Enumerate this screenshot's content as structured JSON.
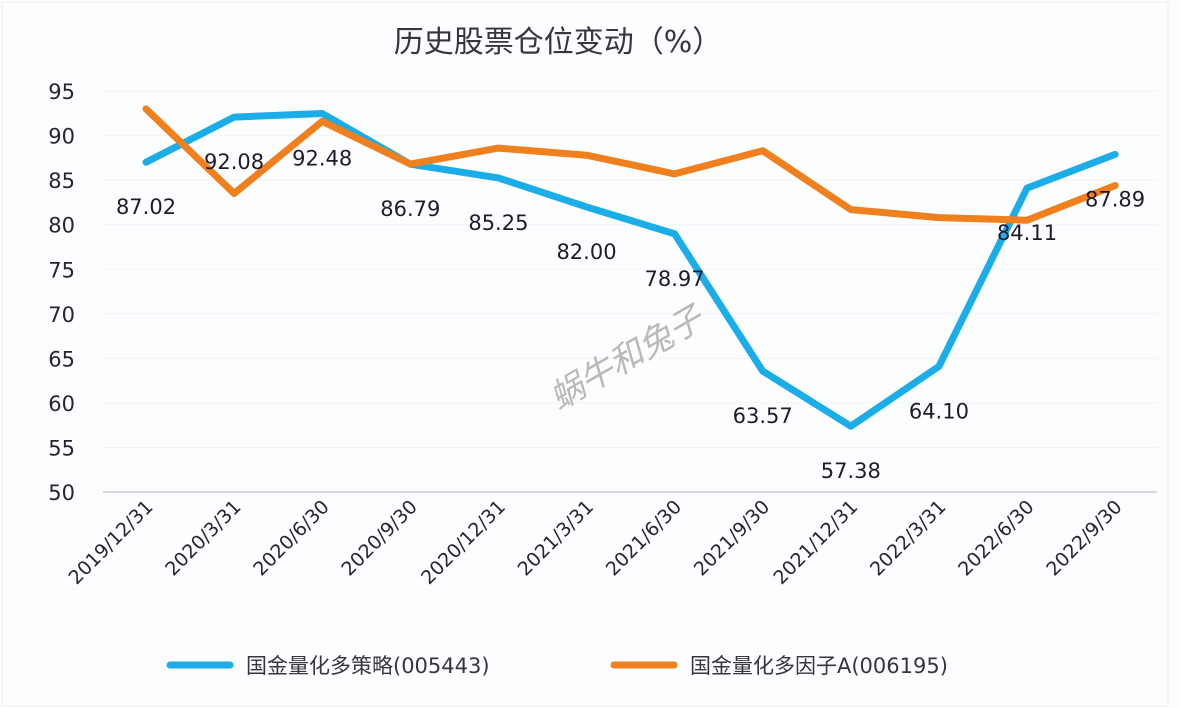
{
  "chart_data": {
    "type": "line",
    "title": "历史股票仓位变动（%）",
    "xlabel": "",
    "ylabel": "",
    "ylim": [
      50,
      95
    ],
    "yticks": [
      95,
      90,
      85,
      80,
      75,
      70,
      65,
      60,
      55,
      50
    ],
    "grid": true,
    "legend_position": "bottom",
    "categories": [
      "2019/12/31",
      "2020/3/31",
      "2020/6/30",
      "2020/9/30",
      "2020/12/31",
      "2021/3/31",
      "2021/6/30",
      "2021/9/30",
      "2021/12/31",
      "2022/3/31",
      "2022/6/30",
      "2022/9/30"
    ],
    "series": [
      {
        "name": "国金量化多策略(005443)",
        "color": "#1aade8",
        "values": [
          87.02,
          92.08,
          92.48,
          86.79,
          85.25,
          82.0,
          78.97,
          63.57,
          57.38,
          64.1,
          84.11,
          87.89
        ],
        "data_labels": [
          "87.02",
          "92.08",
          "92.48",
          "86.79",
          "85.25",
          "82.00",
          "78.97",
          "63.57",
          "57.38",
          "64.10",
          "84.11",
          "87.89"
        ]
      },
      {
        "name": "国金量化多因子A(006195)",
        "color": "#f07f1e",
        "values": [
          93.0,
          83.5,
          91.6,
          86.8,
          88.6,
          87.8,
          85.7,
          88.3,
          81.7,
          80.8,
          80.5,
          84.4
        ]
      }
    ],
    "watermark": "蜗牛和兔子"
  }
}
